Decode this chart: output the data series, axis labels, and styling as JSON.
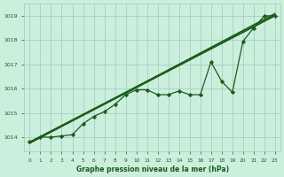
{
  "title": "Graphe pression niveau de la mer (hPa)",
  "background_color": "#cceedd",
  "grid_color": "#99ccbb",
  "line_color": "#1a5c1a",
  "marker_color": "#1a5c1a",
  "xlabel_color": "#1a5c1a",
  "xlim": [
    -0.5,
    23.5
  ],
  "ylim": [
    1013.4,
    1019.5
  ],
  "yticks": [
    1014,
    1015,
    1016,
    1017,
    1018,
    1019
  ],
  "xticks": [
    0,
    1,
    2,
    3,
    4,
    5,
    6,
    7,
    8,
    9,
    10,
    11,
    12,
    13,
    14,
    15,
    16,
    17,
    18,
    19,
    20,
    21,
    22,
    23
  ],
  "straight_lines": [
    {
      "x0": 0,
      "y0": 1013.8,
      "x1": 23,
      "y1": 1019.0
    },
    {
      "x0": 0,
      "y0": 1013.8,
      "x1": 23,
      "y1": 1019.05
    },
    {
      "x0": 0,
      "y0": 1013.75,
      "x1": 23,
      "y1": 1019.1
    },
    {
      "x0": 0,
      "y0": 1013.75,
      "x1": 23,
      "y1": 1019.0
    }
  ],
  "data_line": {
    "x": [
      0,
      1,
      2,
      3,
      4,
      5,
      6,
      7,
      8,
      9,
      10,
      11,
      12,
      13,
      14,
      15,
      16,
      17,
      18,
      19,
      20,
      21,
      22,
      23
    ],
    "y": [
      1013.8,
      1014.0,
      1014.0,
      1014.05,
      1014.1,
      1014.55,
      1014.85,
      1015.05,
      1015.35,
      1015.75,
      1015.95,
      1015.95,
      1015.75,
      1015.75,
      1015.9,
      1015.75,
      1015.75,
      1017.1,
      1016.3,
      1015.85,
      1017.95,
      1018.5,
      1019.0,
      1019.0
    ]
  }
}
